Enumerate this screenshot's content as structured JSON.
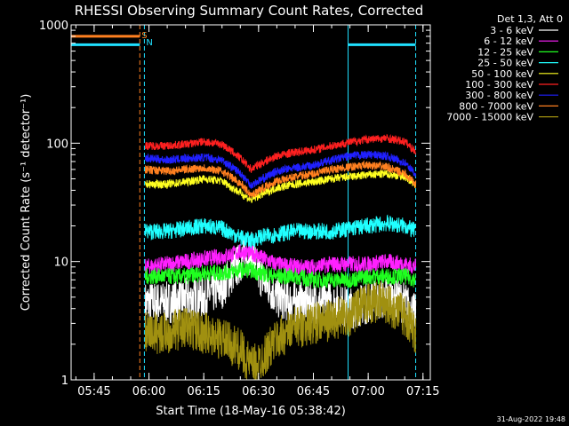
{
  "chart_data": {
    "type": "line",
    "title": "RHESSI Observing Summary Count Rates, Corrected",
    "xlabel": "Start Time (18-May-16 05:38:42)",
    "ylabel": "Corrected Count Rate (s⁻¹ detector⁻¹)",
    "yscale": "log",
    "ylim": [
      1,
      1000
    ],
    "xlim": [
      "05:38:42",
      "07:17:00"
    ],
    "x_ticks": [
      "05:45",
      "06:00",
      "06:15",
      "06:30",
      "06:45",
      "07:00",
      "07:15"
    ],
    "y_ticks": [
      "1",
      "10",
      "100",
      "1000"
    ],
    "legend_position": "top-right",
    "legend_title": "Det 1,3, Att 0",
    "markers": [
      {
        "label": "S",
        "time": "05:57:30",
        "color": "#ff8020"
      },
      {
        "label": "N",
        "time": "05:58:45",
        "color": "#20e0ff"
      }
    ],
    "vertical_lines": [
      {
        "time": "05:38:42",
        "color": "#20e0ff",
        "style": "solid"
      },
      {
        "time": "05:57:30",
        "color": "#ff8020",
        "style": "dashed"
      },
      {
        "time": "05:58:45",
        "color": "#20e0ff",
        "style": "dashed"
      },
      {
        "time": "06:54:30",
        "color": "#20e0ff",
        "style": "solid"
      },
      {
        "time": "07:13:00",
        "color": "#20e0ff",
        "style": "dashed"
      }
    ],
    "flag_bars": [
      {
        "label": "S",
        "color": "#ff8020",
        "value": 800,
        "start": "05:38:42",
        "end": "05:57:30"
      },
      {
        "label": "N",
        "color": "#20e0ff",
        "value": 680,
        "start": "05:38:42",
        "end": "05:57:30"
      },
      {
        "label": "N",
        "color": "#20e0ff",
        "value": 680,
        "start": "06:54:30",
        "end": "07:13:00"
      }
    ],
    "x": [
      "05:59",
      "06:05",
      "06:10",
      "06:15",
      "06:20",
      "06:25",
      "06:28",
      "06:30",
      "06:35",
      "06:40",
      "06:45",
      "06:50",
      "06:55",
      "07:00",
      "07:05",
      "07:10",
      "07:13"
    ],
    "series": [
      {
        "name": "3 - 6 keV",
        "color": "#ffffff",
        "values": [
          4.5,
          4.5,
          4.8,
          5.0,
          6.0,
          10,
          12,
          8,
          5.0,
          4.5,
          4.5,
          4.5,
          4.0,
          4.5,
          5.0,
          4.5,
          3.5
        ]
      },
      {
        "name": "6 - 12 keV",
        "color": "#ff20ff",
        "values": [
          9,
          9.5,
          10,
          10.5,
          11,
          12,
          12,
          11,
          9.5,
          9,
          9,
          9.5,
          9.5,
          9.5,
          10,
          9.5,
          9
        ]
      },
      {
        "name": "12 - 25 keV",
        "color": "#20ff20",
        "values": [
          7.5,
          7.5,
          7.5,
          8,
          8,
          8.5,
          8.5,
          8,
          7.5,
          7.5,
          7,
          7,
          7,
          7.5,
          7.5,
          7.5,
          7
        ]
      },
      {
        "name": "25 - 50 keV",
        "color": "#20ffff",
        "values": [
          18,
          18,
          19,
          20,
          19,
          16,
          15,
          16,
          17,
          18,
          18,
          18,
          19,
          20,
          21,
          20,
          18
        ]
      },
      {
        "name": "50 - 100 keV",
        "color": "#ffff20",
        "values": [
          45,
          45,
          47,
          50,
          48,
          38,
          33,
          36,
          42,
          45,
          47,
          50,
          52,
          54,
          55,
          52,
          45
        ]
      },
      {
        "name": "100 - 300 keV",
        "color": "#ff2020",
        "values": [
          95,
          95,
          98,
          103,
          98,
          75,
          60,
          66,
          78,
          84,
          88,
          95,
          102,
          108,
          110,
          103,
          85
        ]
      },
      {
        "name": "300 - 800 keV",
        "color": "#2020ff",
        "values": [
          75,
          72,
          74,
          76,
          72,
          56,
          44,
          48,
          58,
          62,
          65,
          72,
          78,
          80,
          78,
          68,
          55
        ]
      },
      {
        "name": "800 - 7000 keV",
        "color": "#ff8020",
        "values": [
          60,
          58,
          60,
          62,
          58,
          46,
          36,
          40,
          48,
          52,
          55,
          60,
          63,
          65,
          63,
          55,
          45
        ]
      },
      {
        "name": "7000 - 15000 keV",
        "color": "#a09010",
        "values": [
          2.5,
          2.5,
          2.8,
          2.5,
          2.2,
          1.8,
          1.3,
          1.4,
          2.2,
          2.8,
          3.0,
          3.2,
          3.5,
          4.5,
          4.5,
          3.5,
          2.5
        ]
      }
    ]
  },
  "footer_date": "31-Aug-2022 19:48"
}
